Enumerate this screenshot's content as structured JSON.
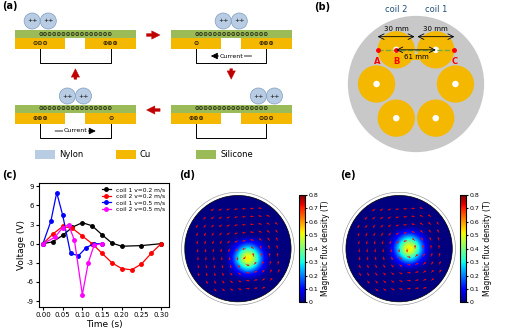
{
  "panel_a": {
    "label": "(a)",
    "states": [
      {
        "balls": [
          "++",
          "++"
        ],
        "silicone": "⊖⊖⊖⊖⊖⊖⊖⊖⊖⊖⊖⊖⊖⊖⊖⊖",
        "left_electrode": "⊖⊖⊖",
        "right_electrode": "⊕⊕⊕"
      },
      {
        "balls": [
          "++",
          "++"
        ],
        "silicone": "⊖⊖⊖⊖⊖⊖⊖⊖⊖⊖⊖⊖⊖⊖⊖⊖",
        "left_electrode": "⊖",
        "right_electrode": "⊕⊕⊕",
        "current": "Current"
      },
      {
        "balls": [
          "++",
          "++"
        ],
        "silicone": "⊖⊖⊖⊖⊖⊖⊖⊖⊖⊖⊖⊖⊖⊖⊖⊖",
        "left_electrode": "⊕⊕⊕",
        "right_electrode": "⊖⊖⊖"
      },
      {
        "balls": [
          "++",
          "++"
        ],
        "silicone": "⊖⊖⊖⊖⊖⊖⊖⊖⊖⊖⊖⊖⊖⊖⊖⊖",
        "left_electrode": "⊕⊕⊕",
        "right_electrode": "⊖",
        "current": "Current"
      }
    ],
    "materials": [
      {
        "name": "Nylon",
        "color": "#b8cce4"
      },
      {
        "name": "Cu",
        "color": "#f5b800"
      },
      {
        "name": "Silicone",
        "color": "#9bbb59"
      }
    ]
  },
  "panel_b": {
    "label": "(b)",
    "coil_labels": [
      "coil 2",
      "coil 1"
    ],
    "dimension_labels": [
      "30 mm",
      "30 mm",
      "61 mm"
    ],
    "point_labels": [
      "A",
      "B",
      "C"
    ]
  },
  "chart_data": {
    "label": "(c)",
    "type": "line",
    "xlabel": "Time (s)",
    "ylabel": "Voltage (V)",
    "xlim": [
      -0.01,
      0.32
    ],
    "ylim": [
      -10,
      9.5
    ],
    "xticks": [
      {
        "value": 0,
        "label": "0.00"
      },
      {
        "value": 0.05,
        "label": "0.05"
      },
      {
        "value": 0.1,
        "label": "0.10"
      },
      {
        "value": 0.15,
        "label": "0.15"
      },
      {
        "value": 0.2,
        "label": "0.20"
      },
      {
        "value": 0.25,
        "label": "0.25"
      },
      {
        "value": 0.3,
        "label": "0.30"
      }
    ],
    "yticks": [
      -9,
      -6,
      -3,
      0,
      3,
      6,
      9
    ],
    "legend": "upper right",
    "series": [
      {
        "name": "coil 1 v=0.2 m/s",
        "color": "#000000",
        "marker": "circle",
        "line_style": "solid",
        "x": [
          0,
          0.025,
          0.05,
          0.075,
          0.1,
          0.125,
          0.15,
          0.175,
          0.2,
          0.25,
          0.3
        ],
        "values": [
          0,
          0.3,
          1.3,
          2.6,
          3.3,
          2.8,
          1.4,
          0.1,
          -0.4,
          -0.3,
          0
        ]
      },
      {
        "name": "coil 2 v=0.2 m/s",
        "color": "#ff0000",
        "marker": "circle",
        "line_style": "solid",
        "x": [
          0,
          0.025,
          0.05,
          0.075,
          0.1,
          0.125,
          0.15,
          0.175,
          0.2,
          0.225,
          0.25,
          0.275,
          0.3
        ],
        "values": [
          0,
          1.5,
          2.7,
          2.4,
          1.2,
          0,
          -1.5,
          -3,
          -3.9,
          -4.1,
          -3.2,
          -1.5,
          0
        ]
      },
      {
        "name": "coil 1 v=0.5 m/s",
        "color": "#0000ff",
        "marker": "circle",
        "line_style": "solid",
        "x": [
          0,
          0.02,
          0.035,
          0.05,
          0.07,
          0.09,
          0.11,
          0.13,
          0.15
        ],
        "values": [
          0,
          3.5,
          8,
          4.5,
          -1.5,
          -1.9,
          -0.6,
          0,
          0
        ]
      },
      {
        "name": "coil 2 v=0.5 m/s",
        "color": "#ff00ff",
        "marker": "circle",
        "line_style": "solid",
        "x": [
          0,
          0.03,
          0.05,
          0.065,
          0.08,
          0.1,
          0.115,
          0.13,
          0.15
        ],
        "values": [
          0,
          1,
          2.5,
          3,
          0.5,
          -8,
          -3,
          -0.2,
          0
        ]
      }
    ]
  },
  "panel_d": {
    "label": "(d)",
    "colorbar": {
      "label": "Magnetic flux density (T)",
      "range": [
        0,
        0.8
      ],
      "ticks": [
        0,
        0.1,
        0.2,
        0.3,
        0.4,
        0.5,
        0.6,
        0.7,
        0.8
      ]
    },
    "cells": [
      [
        0,
        0,
        0,
        0,
        0,
        0,
        0,
        0,
        0,
        0,
        0
      ],
      [
        0,
        0,
        0,
        0,
        0,
        0,
        0,
        0,
        0,
        0,
        0
      ],
      [
        0,
        0,
        0,
        0,
        0,
        0,
        0,
        0,
        0,
        0,
        0
      ],
      [
        0,
        0,
        0,
        0,
        0,
        0,
        0,
        0,
        0,
        0,
        0
      ],
      [
        0,
        0,
        0,
        0,
        0,
        0,
        0,
        0,
        0,
        0,
        0
      ],
      [
        0,
        0,
        0,
        0,
        0,
        0.15,
        0.35,
        0.15,
        0,
        0,
        0
      ],
      [
        0,
        0,
        0,
        0,
        0,
        0.35,
        0.8,
        0.35,
        0,
        0,
        0
      ],
      [
        0,
        0,
        0,
        0,
        0,
        0.15,
        0.35,
        0.15,
        0,
        0,
        0
      ],
      [
        0,
        0,
        0,
        0,
        0,
        0,
        0,
        0,
        0,
        0,
        0
      ],
      [
        0,
        0,
        0,
        0,
        0,
        0,
        0,
        0,
        0,
        0,
        0
      ],
      [
        0,
        0,
        0,
        0,
        0,
        0,
        0,
        0,
        0,
        0,
        0
      ]
    ]
  },
  "panel_e": {
    "label": "(e)",
    "colorbar": {
      "label": "Magnetic flux density (T)",
      "range": [
        0,
        0.8
      ],
      "ticks": [
        0,
        0.1,
        0.2,
        0.3,
        0.4,
        0.5,
        0.6,
        0.7,
        0.8
      ]
    },
    "cells": [
      [
        0,
        0,
        0,
        0,
        0,
        0,
        0,
        0,
        0,
        0,
        0
      ],
      [
        0,
        0,
        0,
        0,
        0,
        0,
        0,
        0,
        0,
        0,
        0
      ],
      [
        0,
        0,
        0,
        0,
        0,
        0,
        0,
        0,
        0,
        0,
        0
      ],
      [
        0,
        0,
        0,
        0,
        0,
        0,
        0,
        0,
        0,
        0,
        0
      ],
      [
        0,
        0,
        0,
        0,
        0,
        0.15,
        0.35,
        0.15,
        0,
        0,
        0
      ],
      [
        0,
        0,
        0,
        0,
        0,
        0.35,
        0.8,
        0.35,
        0,
        0,
        0
      ],
      [
        0,
        0,
        0,
        0,
        0,
        0.15,
        0.35,
        0.15,
        0,
        0,
        0
      ],
      [
        0,
        0,
        0,
        0,
        0,
        0,
        0,
        0,
        0,
        0,
        0
      ],
      [
        0,
        0,
        0,
        0,
        0,
        0,
        0,
        0,
        0,
        0,
        0
      ],
      [
        0,
        0,
        0,
        0,
        0,
        0,
        0,
        0,
        0,
        0,
        0
      ],
      [
        0,
        0,
        0,
        0,
        0,
        0,
        0,
        0,
        0,
        0,
        0
      ]
    ]
  }
}
